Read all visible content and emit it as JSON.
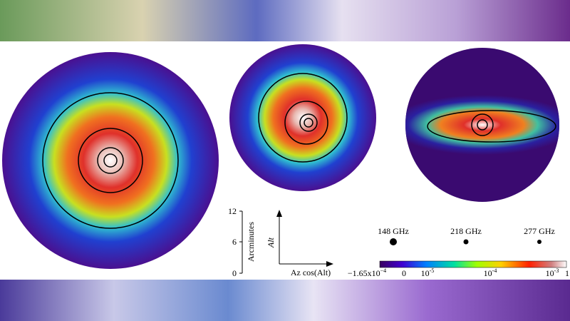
{
  "scale_bar": {
    "ticks": [
      "12",
      "6",
      "0"
    ],
    "label": "Arcminutes"
  },
  "axes": {
    "y_label": "Alt",
    "x_label": "Az cos(Alt)"
  },
  "beams": [
    {
      "label": "148 GHz"
    },
    {
      "label": "218 GHz"
    },
    {
      "label": "277 GHz"
    }
  ],
  "colorbar": {
    "labels": [
      {
        "base": "−1.65x10",
        "sup": "−4"
      },
      {
        "base": "0"
      },
      {
        "base": "10",
        "sup": "-5"
      },
      {
        "base": "10",
        "sup": "-4"
      },
      {
        "base": "10",
        "sup": "-3"
      },
      {
        "base": "1"
      }
    ]
  }
}
